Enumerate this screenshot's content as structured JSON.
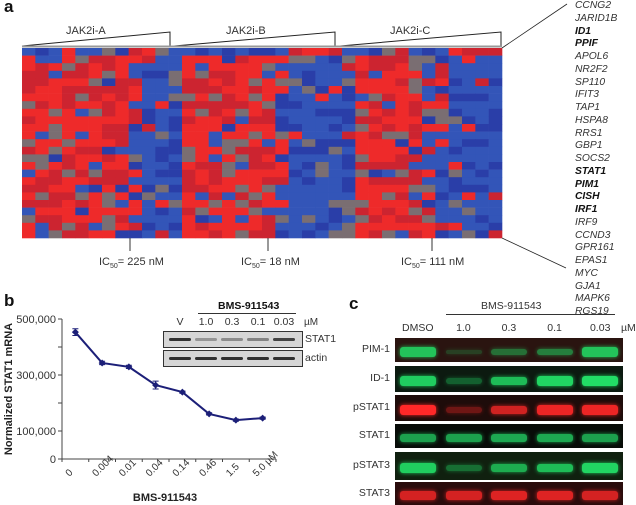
{
  "panels": {
    "a": {
      "letter": "a",
      "groups": [
        {
          "name": "JAK2i-A",
          "ic50": "225 nM"
        },
        {
          "name": "JAK2i-B",
          "ic50": "18 nM"
        },
        {
          "name": "JAK2i-C",
          "ic50": "111 nM"
        }
      ],
      "ic50_prefix": "IC",
      "ic50_sub": "50",
      "ic50_eq": "= ",
      "genes": [
        {
          "name": "CCNG2",
          "bold": false
        },
        {
          "name": "JARID1B",
          "bold": false
        },
        {
          "name": "ID1",
          "bold": true
        },
        {
          "name": "PPIF",
          "bold": true
        },
        {
          "name": "APOL6",
          "bold": false
        },
        {
          "name": "NR2F2",
          "bold": false
        },
        {
          "name": "SP110",
          "bold": false
        },
        {
          "name": "IFIT3",
          "bold": false
        },
        {
          "name": "TAP1",
          "bold": false
        },
        {
          "name": "HSPA8",
          "bold": false
        },
        {
          "name": "RRS1",
          "bold": false
        },
        {
          "name": "GBP1",
          "bold": false
        },
        {
          "name": "SOCS2",
          "bold": false
        },
        {
          "name": "STAT1",
          "bold": true
        },
        {
          "name": "PIM1",
          "bold": true
        },
        {
          "name": "CISH",
          "bold": true
        },
        {
          "name": "IRF1",
          "bold": true
        },
        {
          "name": "IRF9",
          "bold": false
        },
        {
          "name": "CCND3",
          "bold": false
        },
        {
          "name": "GPR161",
          "bold": false
        },
        {
          "name": "EPAS1",
          "bold": false
        },
        {
          "name": "MYC",
          "bold": false
        },
        {
          "name": "GJA1",
          "bold": false
        },
        {
          "name": "MAPK6",
          "bold": false
        },
        {
          "name": "RGS19",
          "bold": false
        }
      ],
      "colors": {
        "high": "#ee2a2a",
        "low": "#3355b8",
        "neutral": "#7a6e72"
      }
    },
    "b": {
      "letter": "b",
      "inset": {
        "title": "BMS-911543",
        "lanes": [
          "V",
          "1.0",
          "0.3",
          "0.1",
          "0.03"
        ],
        "unit": "µM",
        "rows": [
          {
            "label": "STAT1",
            "intensity": [
              0.9,
              0.35,
              0.4,
              0.45,
              0.8
            ]
          },
          {
            "label": "actin",
            "intensity": [
              0.9,
              0.9,
              0.9,
              0.9,
              0.9
            ]
          }
        ]
      }
    },
    "c": {
      "letter": "c",
      "title": "BMS-911543",
      "lanes": [
        "DMSO",
        "1.0",
        "0.3",
        "0.1",
        "0.03"
      ],
      "unit": "µM",
      "rows": [
        {
          "label": "PIM-1",
          "color": "#22dd66",
          "bg": "#2a1410",
          "intensity": [
            0.85,
            0.08,
            0.35,
            0.45,
            0.85
          ]
        },
        {
          "label": "ID-1",
          "color": "#22dd66",
          "bg": "#0c1a10",
          "intensity": [
            0.9,
            0.25,
            0.8,
            0.95,
            1.0
          ]
        },
        {
          "label": "pSTAT1",
          "color": "#ff2828",
          "bg": "#1e0c0a",
          "intensity": [
            1.0,
            0.25,
            0.75,
            0.9,
            0.9
          ]
        },
        {
          "label": "STAT1",
          "color": "#22c860",
          "bg": "#080c08",
          "intensity": [
            0.75,
            0.75,
            0.8,
            0.8,
            0.75
          ]
        },
        {
          "label": "pSTAT3",
          "color": "#22dd66",
          "bg": "#10200f",
          "intensity": [
            0.9,
            0.3,
            0.7,
            0.8,
            0.95
          ]
        },
        {
          "label": "STAT3",
          "color": "#ee2626",
          "bg": "#2a0c0c",
          "intensity": [
            0.85,
            0.85,
            0.9,
            0.9,
            0.85
          ]
        }
      ]
    }
  },
  "chart_data": {
    "type": "line",
    "title": "",
    "xlabel": "BMS-911543",
    "ylabel": "Normalized STAT1 mRNA",
    "categories": [
      "0",
      "0.004",
      "0.01",
      "0.04",
      "0.14",
      "0.46",
      "1.5",
      "5.0 µM"
    ],
    "series": [
      {
        "name": "STAT1 mRNA",
        "color": "#1c1f78",
        "values": [
          453000,
          343000,
          329000,
          264000,
          239000,
          161000,
          139000,
          146000
        ],
        "errors": [
          12000,
          6000,
          6000,
          14000,
          4000,
          4000,
          4000,
          4000
        ]
      }
    ],
    "ylim": [
      0,
      500000
    ],
    "yticks": [
      0,
      100000,
      200000,
      300000,
      400000,
      500000
    ],
    "ytick_labels": [
      "0",
      "100,000",
      "",
      "300,000",
      "",
      "500,000"
    ],
    "grid": false,
    "legend": "none"
  }
}
